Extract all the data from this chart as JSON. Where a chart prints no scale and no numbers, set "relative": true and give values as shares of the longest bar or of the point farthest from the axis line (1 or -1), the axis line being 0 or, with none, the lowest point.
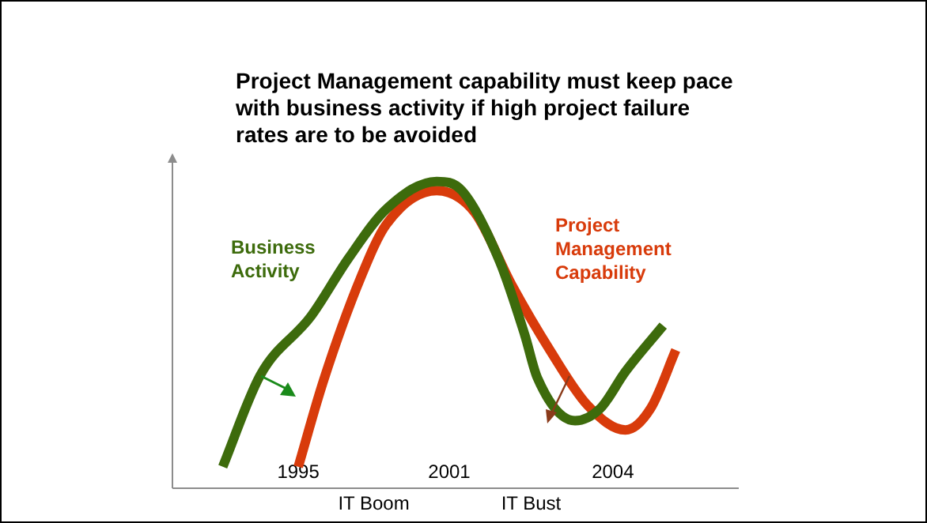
{
  "chart_data": {
    "type": "line",
    "relative": true,
    "title": "Project Management capability must keep pace with business activity if high project failure rates are to be avoided",
    "categories": [
      null,
      null,
      null,
      null,
      null,
      null,
      null,
      null,
      null,
      null,
      "1995",
      null,
      null,
      null,
      null,
      null,
      null,
      null,
      null,
      null,
      null,
      null,
      "2001",
      null,
      null,
      null,
      null,
      null,
      null,
      null,
      null,
      null,
      null,
      null,
      null,
      "2004",
      null,
      null,
      null,
      null,
      null,
      null,
      null,
      null,
      null
    ],
    "series": [
      {
        "name": "Business Activity",
        "color": "#3d6b0c",
        "values": [
          null,
          null,
          null,
          null,
          0.07,
          null,
          null,
          0.37,
          null,
          null,
          null,
          0.56,
          null,
          null,
          0.75,
          null,
          null,
          0.91,
          null,
          null,
          null,
          1,
          null,
          0.97,
          null,
          null,
          0.74,
          null,
          0.5,
          0.36,
          null,
          null,
          0.22,
          null,
          0.26,
          null,
          0.38,
          null,
          null,
          0.53,
          null,
          null,
          null,
          null,
          null
        ]
      },
      {
        "name": "Project Management Capability",
        "color": "#d83b0b",
        "values": [
          null,
          null,
          null,
          null,
          null,
          null,
          null,
          null,
          null,
          null,
          0.07,
          null,
          0.35,
          null,
          null,
          0.69,
          null,
          0.86,
          null,
          null,
          null,
          0.97,
          null,
          null,
          0.9,
          null,
          null,
          0.66,
          null,
          null,
          0.45,
          null,
          null,
          0.27,
          null,
          null,
          0.19,
          null,
          0.26,
          null,
          0.45,
          null,
          null,
          null,
          null
        ]
      }
    ],
    "annotations": [
      "IT Boom",
      "IT Bust"
    ],
    "legend": false,
    "grid": false,
    "marker": "none",
    "line_style": "solid"
  }
}
